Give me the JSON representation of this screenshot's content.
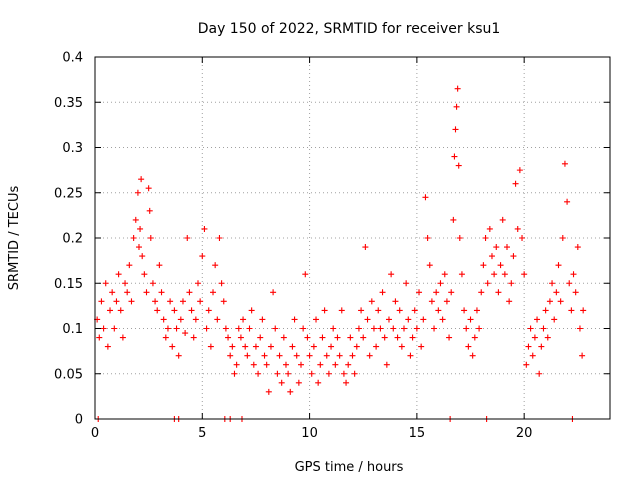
{
  "chart_data": {
    "type": "scatter",
    "title": "Day 150 of 2022, SRMTID for receiver ksu1",
    "xlabel": "GPS time / hours",
    "ylabel": "SRMTID / TECUs",
    "xlim": [
      0,
      24
    ],
    "ylim": [
      0,
      0.4
    ],
    "x_ticks": [
      0,
      5,
      10,
      15,
      20
    ],
    "x_tick_labels": [
      "0",
      "5",
      "10",
      "15",
      "20"
    ],
    "y_ticks": [
      0,
      0.05,
      0.1,
      0.15,
      0.2,
      0.25,
      0.3,
      0.35,
      0.4
    ],
    "y_tick_labels": [
      "0",
      "0.05",
      "0.1",
      "0.15",
      "0.2",
      "0.25",
      "0.3",
      "0.35",
      "0.4"
    ],
    "grid": true,
    "marker": "+",
    "series": [
      {
        "name": "SRMTID",
        "color": "#ff0000",
        "points": [
          [
            0.1,
            0.11
          ],
          [
            0.2,
            0.09
          ],
          [
            0.3,
            0.13
          ],
          [
            0.4,
            0.1
          ],
          [
            0.5,
            0.15
          ],
          [
            0.6,
            0.08
          ],
          [
            0.7,
            0.12
          ],
          [
            0.8,
            0.14
          ],
          [
            0.9,
            0.1
          ],
          [
            1.0,
            0.13
          ],
          [
            1.1,
            0.16
          ],
          [
            1.2,
            0.12
          ],
          [
            1.3,
            0.09
          ],
          [
            1.4,
            0.15
          ],
          [
            1.5,
            0.14
          ],
          [
            1.6,
            0.17
          ],
          [
            1.7,
            0.13
          ],
          [
            1.8,
            0.2
          ],
          [
            1.9,
            0.22
          ],
          [
            2.0,
            0.25
          ],
          [
            2.05,
            0.19
          ],
          [
            2.1,
            0.21
          ],
          [
            2.15,
            0.265
          ],
          [
            2.2,
            0.18
          ],
          [
            2.3,
            0.16
          ],
          [
            2.4,
            0.14
          ],
          [
            2.5,
            0.255
          ],
          [
            2.55,
            0.23
          ],
          [
            2.6,
            0.2
          ],
          [
            2.7,
            0.15
          ],
          [
            2.8,
            0.13
          ],
          [
            2.9,
            0.12
          ],
          [
            3.0,
            0.17
          ],
          [
            3.1,
            0.14
          ],
          [
            3.2,
            0.11
          ],
          [
            3.3,
            0.09
          ],
          [
            3.4,
            0.1
          ],
          [
            3.5,
            0.13
          ],
          [
            3.6,
            0.08
          ],
          [
            3.7,
            0.12
          ],
          [
            3.8,
            0.1
          ],
          [
            3.9,
            0.07
          ],
          [
            4.0,
            0.11
          ],
          [
            4.1,
            0.13
          ],
          [
            4.2,
            0.095
          ],
          [
            4.3,
            0.2
          ],
          [
            4.4,
            0.14
          ],
          [
            4.5,
            0.12
          ],
          [
            4.6,
            0.09
          ],
          [
            4.7,
            0.11
          ],
          [
            4.8,
            0.15
          ],
          [
            4.9,
            0.13
          ],
          [
            5.0,
            0.18
          ],
          [
            5.1,
            0.21
          ],
          [
            5.2,
            0.1
          ],
          [
            5.3,
            0.12
          ],
          [
            5.4,
            0.08
          ],
          [
            5.5,
            0.14
          ],
          [
            5.6,
            0.17
          ],
          [
            5.7,
            0.11
          ],
          [
            5.8,
            0.2
          ],
          [
            5.9,
            0.15
          ],
          [
            6.0,
            0.13
          ],
          [
            6.1,
            0.1
          ],
          [
            6.2,
            0.09
          ],
          [
            6.3,
            0.07
          ],
          [
            6.4,
            0.08
          ],
          [
            6.5,
            0.05
          ],
          [
            6.6,
            0.06
          ],
          [
            6.7,
            0.1
          ],
          [
            6.8,
            0.09
          ],
          [
            6.9,
            0.11
          ],
          [
            7.0,
            0.08
          ],
          [
            7.1,
            0.07
          ],
          [
            7.2,
            0.1
          ],
          [
            7.3,
            0.12
          ],
          [
            7.4,
            0.06
          ],
          [
            7.5,
            0.08
          ],
          [
            7.6,
            0.05
          ],
          [
            7.7,
            0.09
          ],
          [
            7.8,
            0.11
          ],
          [
            7.9,
            0.07
          ],
          [
            8.0,
            0.06
          ],
          [
            8.1,
            0.03
          ],
          [
            8.2,
            0.08
          ],
          [
            8.3,
            0.14
          ],
          [
            8.4,
            0.1
          ],
          [
            8.5,
            0.05
          ],
          [
            8.6,
            0.07
          ],
          [
            8.7,
            0.04
          ],
          [
            8.8,
            0.09
          ],
          [
            8.9,
            0.06
          ],
          [
            9.0,
            0.05
          ],
          [
            9.1,
            0.03
          ],
          [
            9.2,
            0.08
          ],
          [
            9.3,
            0.11
          ],
          [
            9.4,
            0.07
          ],
          [
            9.5,
            0.04
          ],
          [
            9.6,
            0.06
          ],
          [
            9.7,
            0.1
          ],
          [
            9.8,
            0.16
          ],
          [
            9.9,
            0.09
          ],
          [
            10.0,
            0.07
          ],
          [
            10.1,
            0.05
          ],
          [
            10.2,
            0.08
          ],
          [
            10.3,
            0.11
          ],
          [
            10.4,
            0.04
          ],
          [
            10.5,
            0.06
          ],
          [
            10.6,
            0.09
          ],
          [
            10.7,
            0.12
          ],
          [
            10.8,
            0.07
          ],
          [
            10.9,
            0.05
          ],
          [
            11.0,
            0.08
          ],
          [
            11.1,
            0.1
          ],
          [
            11.2,
            0.06
          ],
          [
            11.3,
            0.09
          ],
          [
            11.4,
            0.07
          ],
          [
            11.5,
            0.12
          ],
          [
            11.6,
            0.05
          ],
          [
            11.7,
            0.04
          ],
          [
            11.8,
            0.06
          ],
          [
            11.9,
            0.09
          ],
          [
            12.0,
            0.07
          ],
          [
            12.1,
            0.05
          ],
          [
            12.2,
            0.08
          ],
          [
            12.3,
            0.1
          ],
          [
            12.4,
            0.12
          ],
          [
            12.5,
            0.09
          ],
          [
            12.6,
            0.19
          ],
          [
            12.7,
            0.11
          ],
          [
            12.8,
            0.07
          ],
          [
            12.9,
            0.13
          ],
          [
            13.0,
            0.1
          ],
          [
            13.1,
            0.08
          ],
          [
            13.2,
            0.12
          ],
          [
            13.3,
            0.1
          ],
          [
            13.4,
            0.14
          ],
          [
            13.5,
            0.09
          ],
          [
            13.6,
            0.06
          ],
          [
            13.7,
            0.11
          ],
          [
            13.8,
            0.16
          ],
          [
            13.9,
            0.1
          ],
          [
            14.0,
            0.13
          ],
          [
            14.1,
            0.09
          ],
          [
            14.2,
            0.12
          ],
          [
            14.3,
            0.08
          ],
          [
            14.4,
            0.1
          ],
          [
            14.5,
            0.15
          ],
          [
            14.6,
            0.11
          ],
          [
            14.7,
            0.07
          ],
          [
            14.8,
            0.09
          ],
          [
            14.9,
            0.12
          ],
          [
            15.0,
            0.1
          ],
          [
            15.1,
            0.14
          ],
          [
            15.2,
            0.08
          ],
          [
            15.3,
            0.11
          ],
          [
            15.4,
            0.245
          ],
          [
            15.5,
            0.2
          ],
          [
            15.6,
            0.17
          ],
          [
            15.7,
            0.13
          ],
          [
            15.8,
            0.1
          ],
          [
            15.9,
            0.14
          ],
          [
            16.0,
            0.12
          ],
          [
            16.1,
            0.15
          ],
          [
            16.2,
            0.11
          ],
          [
            16.3,
            0.16
          ],
          [
            16.4,
            0.13
          ],
          [
            16.5,
            0.09
          ],
          [
            16.6,
            0.14
          ],
          [
            16.7,
            0.22
          ],
          [
            16.75,
            0.29
          ],
          [
            16.8,
            0.32
          ],
          [
            16.85,
            0.345
          ],
          [
            16.9,
            0.365
          ],
          [
            16.95,
            0.28
          ],
          [
            17.0,
            0.2
          ],
          [
            17.1,
            0.16
          ],
          [
            17.2,
            0.12
          ],
          [
            17.3,
            0.1
          ],
          [
            17.4,
            0.08
          ],
          [
            17.5,
            0.11
          ],
          [
            17.6,
            0.07
          ],
          [
            17.7,
            0.09
          ],
          [
            17.8,
            0.12
          ],
          [
            17.9,
            0.1
          ],
          [
            18.0,
            0.14
          ],
          [
            18.1,
            0.17
          ],
          [
            18.2,
            0.2
          ],
          [
            18.3,
            0.15
          ],
          [
            18.4,
            0.21
          ],
          [
            18.5,
            0.18
          ],
          [
            18.6,
            0.16
          ],
          [
            18.7,
            0.19
          ],
          [
            18.8,
            0.14
          ],
          [
            18.9,
            0.17
          ],
          [
            19.0,
            0.22
          ],
          [
            19.1,
            0.16
          ],
          [
            19.2,
            0.19
          ],
          [
            19.3,
            0.13
          ],
          [
            19.4,
            0.15
          ],
          [
            19.5,
            0.18
          ],
          [
            19.6,
            0.26
          ],
          [
            19.7,
            0.21
          ],
          [
            19.8,
            0.275
          ],
          [
            19.9,
            0.2
          ],
          [
            20.0,
            0.16
          ],
          [
            20.1,
            0.06
          ],
          [
            20.2,
            0.08
          ],
          [
            20.3,
            0.1
          ],
          [
            20.4,
            0.07
          ],
          [
            20.5,
            0.09
          ],
          [
            20.6,
            0.11
          ],
          [
            20.7,
            0.05
          ],
          [
            20.8,
            0.08
          ],
          [
            20.9,
            0.1
          ],
          [
            21.0,
            0.12
          ],
          [
            21.1,
            0.09
          ],
          [
            21.2,
            0.13
          ],
          [
            21.3,
            0.15
          ],
          [
            21.4,
            0.11
          ],
          [
            21.5,
            0.14
          ],
          [
            21.6,
            0.17
          ],
          [
            21.7,
            0.13
          ],
          [
            21.8,
            0.2
          ],
          [
            21.9,
            0.282
          ],
          [
            22.0,
            0.24
          ],
          [
            22.1,
            0.15
          ],
          [
            22.2,
            0.12
          ],
          [
            22.3,
            0.16
          ],
          [
            22.4,
            0.14
          ],
          [
            22.5,
            0.19
          ],
          [
            22.6,
            0.1
          ],
          [
            22.7,
            0.07
          ],
          [
            22.75,
            0.12
          ],
          [
            0.15,
            0.0
          ],
          [
            3.7,
            0.0
          ],
          [
            3.9,
            0.0
          ],
          [
            6.05,
            0.0
          ],
          [
            6.3,
            0.0
          ],
          [
            6.85,
            0.0
          ],
          [
            16.55,
            0.0
          ],
          [
            18.25,
            0.0
          ],
          [
            22.25,
            0.0
          ]
        ]
      }
    ]
  }
}
